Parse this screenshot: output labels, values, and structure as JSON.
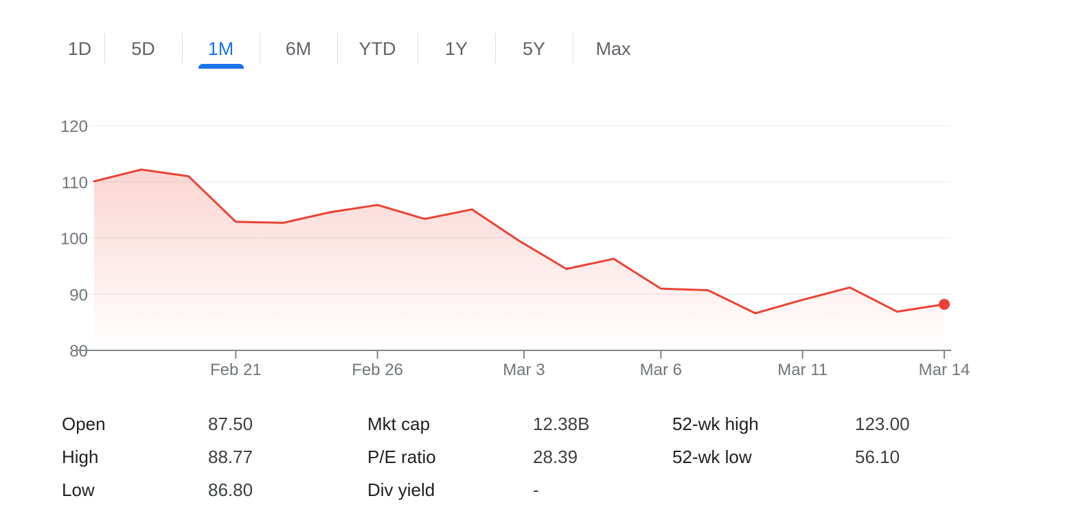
{
  "range_tabs": {
    "active_index": 2,
    "accent_color": "#1a73e8",
    "items": [
      {
        "label": "1D"
      },
      {
        "label": "5D"
      },
      {
        "label": "1M"
      },
      {
        "label": "6M"
      },
      {
        "label": "YTD"
      },
      {
        "label": "1Y"
      },
      {
        "label": "5Y"
      },
      {
        "label": "Max"
      }
    ]
  },
  "chart_data": {
    "type": "area",
    "title": "",
    "xlabel": "",
    "ylabel": "",
    "line_color": "#ea4335",
    "ylim": [
      80,
      120
    ],
    "y_ticks": [
      80,
      90,
      100,
      110,
      120
    ],
    "grid": true,
    "x_ticks": [
      {
        "label": "Feb 21",
        "day": 3
      },
      {
        "label": "Feb 26",
        "day": 6
      },
      {
        "label": "Mar 3",
        "day": 9.1
      },
      {
        "label": "Mar 6",
        "day": 12
      },
      {
        "label": "Mar 11",
        "day": 15
      },
      {
        "label": "Mar 14",
        "day": 18
      }
    ],
    "x": [
      0,
      1,
      2,
      3,
      4,
      5,
      6,
      7,
      8,
      9,
      10,
      11,
      12,
      13,
      14,
      15,
      16,
      17,
      18
    ],
    "series": [
      {
        "values": [
          110.1,
          112.2,
          111.0,
          102.9,
          102.7,
          104.6,
          105.9,
          103.4,
          105.1,
          99.5,
          94.5,
          96.3,
          91.0,
          90.7,
          86.6,
          89.0,
          91.2,
          86.9,
          88.2
        ]
      }
    ]
  },
  "stats": {
    "rows": [
      [
        {
          "label": "Open",
          "value": "87.50"
        },
        {
          "label": "Mkt cap",
          "value": "12.38B"
        },
        {
          "label": "52-wk high",
          "value": "123.00"
        }
      ],
      [
        {
          "label": "High",
          "value": "88.77"
        },
        {
          "label": "P/E ratio",
          "value": "28.39"
        },
        {
          "label": "52-wk low",
          "value": "56.10"
        }
      ],
      [
        {
          "label": "Low",
          "value": "86.80"
        },
        {
          "label": "Div yield",
          "value": "-"
        }
      ]
    ]
  }
}
